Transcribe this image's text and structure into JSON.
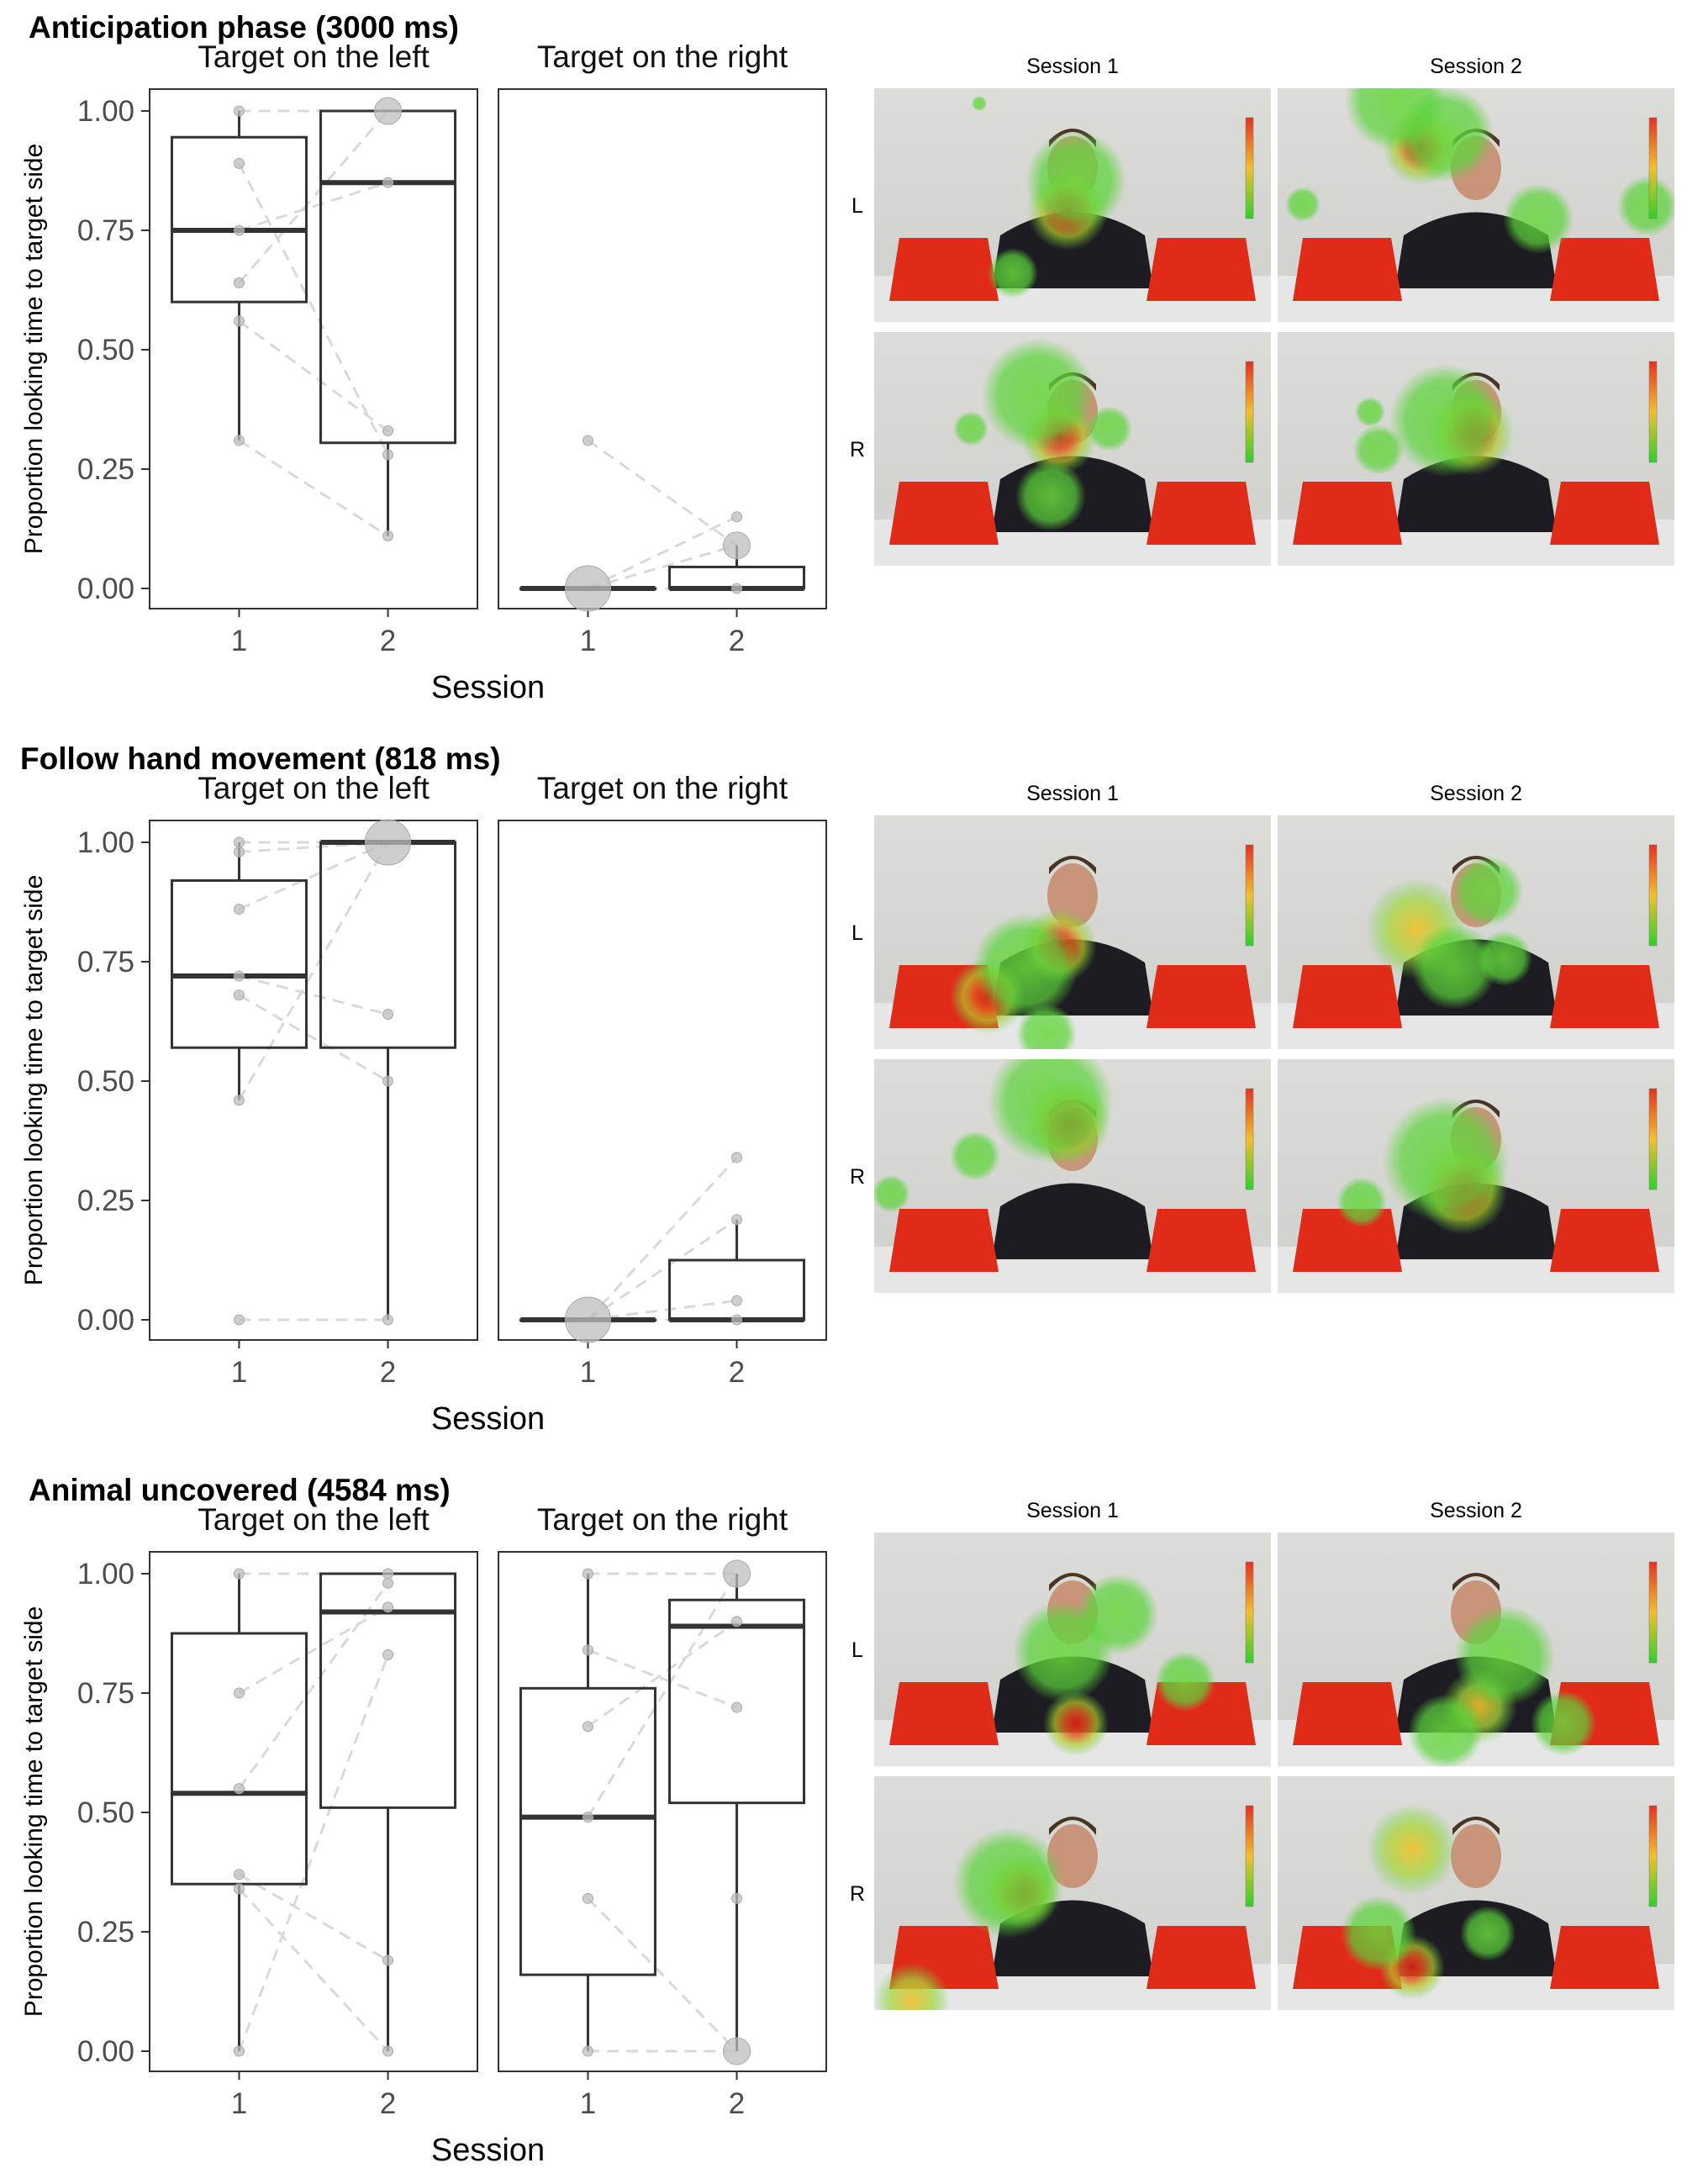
{
  "figure": {
    "xlabel": "Session",
    "ylabel": "Proportion looking time to target side",
    "facets": [
      "Target on the left",
      "Target on the right"
    ],
    "x_ticks": [
      "1",
      "2"
    ],
    "y_ticks": [
      "0.00",
      "0.25",
      "0.50",
      "0.75",
      "1.00"
    ]
  },
  "heatmap_labels": {
    "session1": "Session 1",
    "session2": "Session 2",
    "row_left": "L",
    "row_right": "R"
  },
  "colors": {
    "box": "#333333",
    "points": "#bdbdbd",
    "lines": "#d9d9d9",
    "heat_red": "#e53222",
    "heat_green": "#5bd43a"
  },
  "chart_data": [
    {
      "type": "boxplot",
      "title": "Anticipation phase (3000 ms)",
      "xlabel": "Session",
      "ylabel": "Proportion looking time to target side",
      "ylim": [
        0,
        1.05
      ],
      "panels": [
        {
          "facet": "Target on the left",
          "boxes": [
            {
              "session": "1",
              "min": 0.31,
              "q1": 0.6,
              "median": 0.75,
              "q3": 0.945,
              "max": 1.0
            },
            {
              "session": "2",
              "min": 0.11,
              "q1": 0.305,
              "median": 0.85,
              "q3": 1.0,
              "max": 1.0
            }
          ],
          "points": [
            {
              "session": "1",
              "values": [
                1.0,
                0.89,
                0.75,
                0.64,
                0.56,
                0.31
              ]
            },
            {
              "session": "2",
              "values": [
                1.0,
                0.85,
                0.33,
                0.28,
                0.11
              ]
            }
          ],
          "pairs": [
            [
              1.0,
              1.0
            ],
            [
              0.89,
              0.28
            ],
            [
              0.75,
              0.85
            ],
            [
              0.64,
              1.0
            ],
            [
              0.56,
              0.33
            ],
            [
              0.31,
              0.11
            ]
          ]
        },
        {
          "facet": "Target on the right",
          "boxes": [
            {
              "session": "1",
              "min": 0.0,
              "q1": 0.0,
              "median": 0.0,
              "q3": 0.0,
              "max": 0.0
            },
            {
              "session": "2",
              "min": 0.0,
              "q1": 0.0,
              "median": 0.0,
              "q3": 0.045,
              "max": 0.09
            }
          ],
          "points": [
            {
              "session": "1",
              "values": [
                0.31,
                0.0
              ]
            },
            {
              "session": "2",
              "values": [
                0.15,
                0.09,
                0.0
              ]
            }
          ],
          "pairs": [
            [
              0.31,
              0.09
            ],
            [
              0.0,
              0.15
            ],
            [
              0.0,
              0.09
            ],
            [
              0.0,
              0.0
            ]
          ]
        }
      ]
    },
    {
      "type": "boxplot",
      "title": "Follow hand movement (818 ms)",
      "xlabel": "Session",
      "ylabel": "Proportion looking time to target side",
      "ylim": [
        0,
        1.05
      ],
      "panels": [
        {
          "facet": "Target on the left",
          "boxes": [
            {
              "session": "1",
              "min": 0.46,
              "q1": 0.57,
              "median": 0.72,
              "q3": 0.92,
              "max": 1.0
            },
            {
              "session": "2",
              "min": 0.0,
              "q1": 0.57,
              "median": 1.0,
              "q3": 1.0,
              "max": 1.0
            }
          ],
          "points": [
            {
              "session": "1",
              "values": [
                1.0,
                0.98,
                0.86,
                0.72,
                0.68,
                0.46,
                0.0
              ]
            },
            {
              "session": "2",
              "values": [
                1.0,
                0.64,
                0.5,
                0.0
              ]
            }
          ],
          "pairs": [
            [
              1.0,
              1.0
            ],
            [
              0.98,
              1.0
            ],
            [
              0.86,
              1.0
            ],
            [
              0.72,
              0.64
            ],
            [
              0.68,
              0.5
            ],
            [
              0.46,
              1.0
            ],
            [
              0.0,
              0.0
            ]
          ]
        },
        {
          "facet": "Target on the right",
          "boxes": [
            {
              "session": "1",
              "min": 0.0,
              "q1": 0.0,
              "median": 0.0,
              "q3": 0.0,
              "max": 0.0
            },
            {
              "session": "2",
              "min": 0.0,
              "q1": 0.0,
              "median": 0.0,
              "q3": 0.125,
              "max": 0.21
            }
          ],
          "points": [
            {
              "session": "1",
              "values": [
                0.0
              ]
            },
            {
              "session": "2",
              "values": [
                0.34,
                0.21,
                0.04,
                0.0
              ]
            }
          ],
          "pairs": [
            [
              0.0,
              0.34
            ],
            [
              0.0,
              0.21
            ],
            [
              0.0,
              0.04
            ],
            [
              0.0,
              0.0
            ]
          ]
        }
      ]
    },
    {
      "type": "boxplot",
      "title": "Animal uncovered (4584 ms)",
      "xlabel": "Session",
      "ylabel": "Proportion looking time to target side",
      "ylim": [
        0,
        1.05
      ],
      "panels": [
        {
          "facet": "Target on the left",
          "boxes": [
            {
              "session": "1",
              "min": 0.0,
              "q1": 0.35,
              "median": 0.54,
              "q3": 0.875,
              "max": 1.0
            },
            {
              "session": "2",
              "min": 0.0,
              "q1": 0.51,
              "median": 0.92,
              "q3": 1.0,
              "max": 1.0
            }
          ],
          "points": [
            {
              "session": "1",
              "values": [
                1.0,
                0.75,
                0.55,
                0.37,
                0.34,
                0.0
              ]
            },
            {
              "session": "2",
              "values": [
                1.0,
                0.98,
                0.93,
                0.83,
                0.19,
                0.0
              ]
            }
          ],
          "pairs": [
            [
              1.0,
              1.0
            ],
            [
              0.75,
              0.93
            ],
            [
              0.55,
              0.98
            ],
            [
              0.37,
              0.19
            ],
            [
              0.34,
              0.0
            ],
            [
              0.0,
              0.83
            ]
          ]
        },
        {
          "facet": "Target on the right",
          "boxes": [
            {
              "session": "1",
              "min": 0.0,
              "q1": 0.16,
              "median": 0.49,
              "q3": 0.76,
              "max": 1.0
            },
            {
              "session": "2",
              "min": 0.0,
              "q1": 0.52,
              "median": 0.89,
              "q3": 0.945,
              "max": 1.0
            }
          ],
          "points": [
            {
              "session": "1",
              "values": [
                1.0,
                0.84,
                0.68,
                0.49,
                0.32,
                0.0
              ]
            },
            {
              "session": "2",
              "values": [
                1.0,
                0.9,
                0.72,
                0.32,
                0.0
              ]
            }
          ],
          "pairs": [
            [
              1.0,
              1.0
            ],
            [
              0.84,
              0.72
            ],
            [
              0.68,
              0.9
            ],
            [
              0.49,
              1.0
            ],
            [
              0.32,
              0.0
            ],
            [
              0.0,
              0.0
            ]
          ]
        }
      ]
    }
  ]
}
